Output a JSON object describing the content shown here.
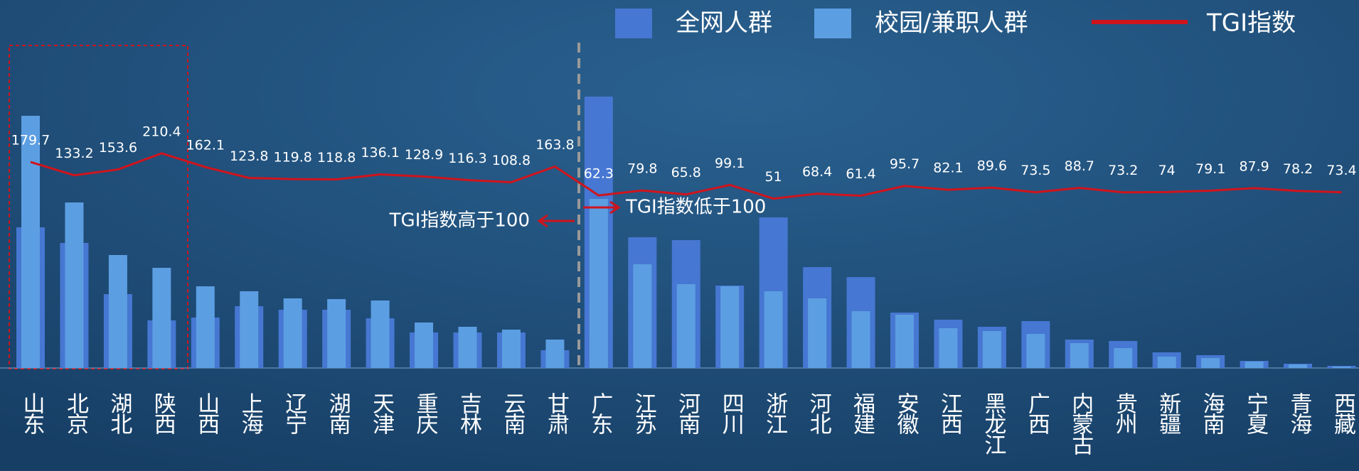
{
  "chart_data": {
    "type": "bar",
    "categories": [
      "山东",
      "北京",
      "湖北",
      "陕西",
      "山西",
      "上海",
      "辽宁",
      "湖南",
      "天津",
      "重庆",
      "吉林",
      "云南",
      "甘肃",
      "广东",
      "江苏",
      "河南",
      "四川",
      "浙江",
      "河北",
      "福建",
      "安徽",
      "江西",
      "黑龙江",
      "广西",
      "内蒙古",
      "贵州",
      "新疆",
      "海南",
      "宁夏",
      "青海",
      "西藏"
    ],
    "series": [
      {
        "name": "全网人群",
        "color": "#4677d2",
        "values": [
          198,
          176,
          104,
          67,
          71,
          87,
          82,
          82,
          70,
          50,
          50,
          50,
          25,
          382,
          184,
          180,
          116,
          212,
          142,
          128,
          78,
          68,
          58,
          66,
          40,
          38,
          22,
          18,
          10,
          6,
          3
        ]
      },
      {
        "name": "校园/兼职人群",
        "color": "#5c9ee2",
        "values": [
          355,
          233,
          159,
          141,
          115,
          108,
          98,
          97,
          95,
          64,
          58,
          54,
          40,
          238,
          146,
          118,
          115,
          108,
          98,
          80,
          75,
          56,
          52,
          48,
          35,
          28,
          16,
          14,
          9,
          5,
          2
        ]
      },
      {
        "name": "TGI指数",
        "type": "line",
        "color": "#d0141c",
        "values": [
          179.7,
          133.2,
          153.6,
          210.4,
          162.1,
          123.8,
          119.8,
          118.8,
          136.1,
          128.9,
          116.3,
          108.8,
          163.8,
          62.3,
          79.8,
          65.8,
          99.1,
          51.0,
          68.4,
          61.4,
          95.7,
          82.1,
          89.6,
          73.5,
          88.7,
          73.2,
          74.0,
          79.1,
          87.9,
          78.2,
          73.4
        ]
      }
    ],
    "annotations": [
      "TGI指数高于100",
      "TGI指数低于100"
    ]
  }
}
